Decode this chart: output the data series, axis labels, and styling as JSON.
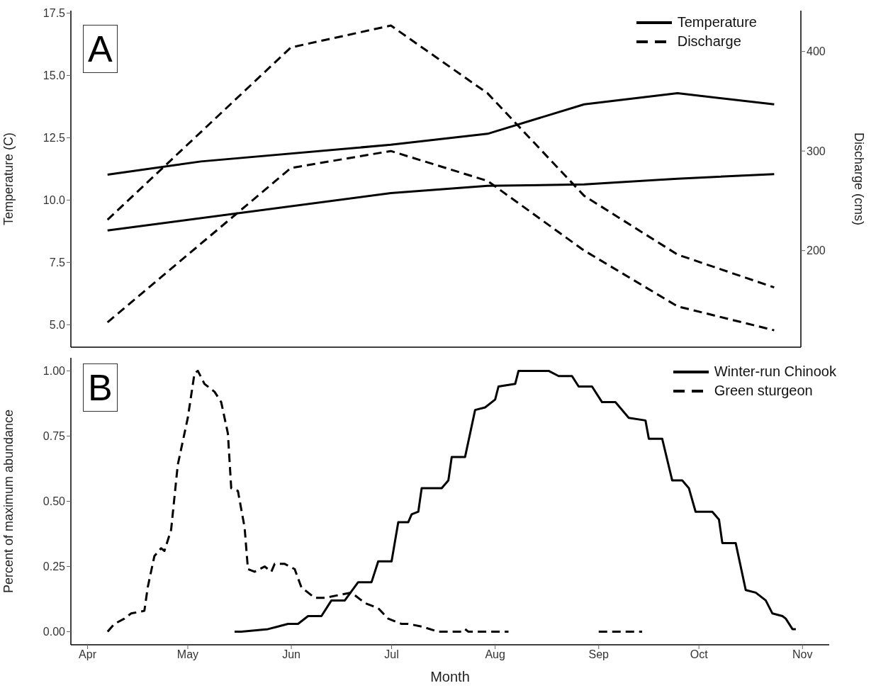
{
  "chart_data": [
    {
      "type": "line",
      "ylabel": "Temperature (C)",
      "y2label": "Discharge (cms)",
      "annotations": [
        "A"
      ],
      "legend": "top right",
      "tick_labels": "y",
      "xlim": [
        "--03-27",
        "--11-01"
      ],
      "xticks": [
        {
          "value": "--04-01",
          "label": "Apr"
        },
        {
          "value": "--05-01",
          "label": "May"
        },
        {
          "value": "--06-01",
          "label": "Jun"
        },
        {
          "value": "--07-01",
          "label": "Jul"
        },
        {
          "value": "--08-01",
          "label": "Aug"
        },
        {
          "value": "--09-01",
          "label": "Sep"
        },
        {
          "value": "--10-01",
          "label": "Oct"
        },
        {
          "value": "--11-01",
          "label": "Nov"
        }
      ],
      "ylim": [
        4.1,
        17.6
      ],
      "yticks": [
        {
          "value": 5,
          "label": "5.0"
        },
        {
          "value": 7.5,
          "label": "7.5"
        },
        {
          "value": 10,
          "label": "10.0"
        },
        {
          "value": 12.5,
          "label": "12.5"
        },
        {
          "value": 15,
          "label": "15.0"
        },
        {
          "value": 17.5,
          "label": "17.5"
        }
      ],
      "y2lim": [
        103,
        441
      ],
      "y2ticks": [
        200,
        300,
        400
      ],
      "series": [
        {
          "name": "Temperature",
          "color": "#000000",
          "line_style": "solid",
          "x": [
            "--04-07",
            "--05-05",
            "--07-01",
            "--07-30",
            "--08-28",
            "--09-25",
            "--10-24"
          ],
          "values": [
            11.02,
            11.55,
            12.22,
            12.66,
            13.84,
            14.29,
            13.84
          ]
        },
        {
          "color": "#000000",
          "line_style": "solid",
          "x": [
            "--04-07",
            "--07-01",
            "--07-30",
            "--08-28",
            "--09-25",
            "--10-24"
          ],
          "values": [
            8.78,
            10.28,
            10.57,
            10.63,
            10.86,
            11.04
          ]
        },
        {
          "name": "Discharge",
          "color": "#000000",
          "line_style": "dashed",
          "axis": "y2",
          "x": [
            "--04-07",
            "--06-01",
            "--07-01",
            "--07-30",
            "--08-28",
            "--09-25",
            "--10-24"
          ],
          "values": [
            231,
            404,
            426,
            358,
            255,
            196,
            163
          ]
        },
        {
          "color": "#000000",
          "line_style": "dashed",
          "axis": "y2",
          "x": [
            "--04-07",
            "--06-01",
            "--07-01",
            "--07-30",
            "--08-28",
            "--09-25",
            "--10-24"
          ],
          "values": [
            128,
            283,
            300,
            270,
            200,
            144,
            120
          ]
        }
      ]
    },
    {
      "type": "line",
      "xlabel": "Month",
      "ylabel": "Percent of maximum abundance",
      "annotations": [
        "B"
      ],
      "legend": "top right",
      "xlim": [
        "--03-27",
        "--11-09"
      ],
      "xticks": [
        {
          "value": "--04-01",
          "label": "Apr"
        },
        {
          "value": "--05-01",
          "label": "May"
        },
        {
          "value": "--06-01",
          "label": "Jun"
        },
        {
          "value": "--07-01",
          "label": "Jul"
        },
        {
          "value": "--08-01",
          "label": "Aug"
        },
        {
          "value": "--09-01",
          "label": "Sep"
        },
        {
          "value": "--10-01",
          "label": "Oct"
        },
        {
          "value": "--11-01",
          "label": "Nov"
        }
      ],
      "ylim": [
        -0.05,
        1.05
      ],
      "yticks": [
        {
          "value": 0,
          "label": "0.00"
        },
        {
          "value": 0.25,
          "label": "0.25"
        },
        {
          "value": 0.5,
          "label": "0.50"
        },
        {
          "value": 0.75,
          "label": "0.75"
        },
        {
          "value": 1,
          "label": "1.00"
        }
      ],
      "series": [
        {
          "name": "Winter-run Chinook",
          "color": "#000000",
          "line_style": "solid",
          "x": [
            "--05-15",
            "--05-17",
            "--05-25",
            "--05-28",
            "--05-31",
            "--06-03",
            "--06-06",
            "--06-10",
            "--06-13",
            "--06-17",
            "--06-21",
            "--06-25",
            "--06-27",
            "--07-01",
            "--07-03",
            "--07-06",
            "--07-07",
            "--07-09",
            "--07-10",
            "--07-16",
            "--07-18",
            "--07-19",
            "--07-23",
            "--07-26",
            "--07-29",
            "--08-01",
            "--08-02",
            "--08-07",
            "--08-08",
            "--08-17",
            "--08-20",
            "--08-24",
            "--08-26",
            "--08-30",
            "--09-02",
            "--09-06",
            "--09-10",
            "--09-15",
            "--09-16",
            "--09-20",
            "--09-23",
            "--09-26",
            "--09-28",
            "--09-30",
            "--10-05",
            "--10-07",
            "--10-08",
            "--10-12",
            "--10-15",
            "--10-18",
            "--10-21",
            "--10-23",
            "--10-26",
            "--10-27",
            "--10-29",
            "--10-30"
          ],
          "values": [
            0.0,
            0.0,
            0.01,
            0.02,
            0.03,
            0.03,
            0.06,
            0.06,
            0.12,
            0.12,
            0.19,
            0.19,
            0.27,
            0.27,
            0.42,
            0.42,
            0.45,
            0.46,
            0.55,
            0.55,
            0.58,
            0.67,
            0.67,
            0.85,
            0.86,
            0.89,
            0.94,
            0.95,
            1.0,
            1.0,
            0.98,
            0.98,
            0.94,
            0.94,
            0.88,
            0.88,
            0.82,
            0.81,
            0.74,
            0.74,
            0.58,
            0.58,
            0.55,
            0.46,
            0.46,
            0.43,
            0.34,
            0.34,
            0.16,
            0.15,
            0.12,
            0.07,
            0.06,
            0.05,
            0.01,
            0.01
          ]
        },
        {
          "name": "Green sturgeon",
          "color": "#000000",
          "line_style": "dashed",
          "x": [
            "--04-07",
            "--04-09",
            "--04-12",
            "--04-14",
            "--04-18",
            "--04-19",
            "--04-21",
            "--04-23",
            "--04-24",
            "--04-26",
            "--04-28",
            "--05-01",
            "--05-03",
            "--05-04",
            "--05-06",
            "--05-09",
            "--05-11",
            "--05-13",
            "--05-14",
            "--05-16",
            "--05-18",
            "--05-19",
            "--05-21",
            "--05-24",
            "--05-26",
            "--05-27",
            "--05-30",
            "--06-02",
            "--06-04",
            "--06-08",
            "--06-11",
            "--06-19",
            "--06-23",
            "--06-27",
            "--06-30",
            "--07-04",
            "--07-06",
            "--07-10",
            "--07-15",
            "--07-22",
            "--07-23",
            "--07-24",
            "--08-05",
            "--08-15",
            "--09-01",
            "--09-14"
          ],
          "values": [
            0.0,
            0.03,
            0.05,
            0.07,
            0.08,
            0.17,
            0.29,
            0.32,
            0.31,
            0.39,
            0.64,
            0.82,
            0.99,
            1.0,
            0.95,
            0.92,
            0.88,
            0.76,
            0.55,
            0.54,
            0.4,
            0.24,
            0.23,
            0.25,
            0.23,
            0.26,
            0.26,
            0.24,
            0.17,
            0.13,
            0.13,
            0.15,
            0.11,
            0.09,
            0.05,
            0.03,
            0.03,
            0.02,
            0.0,
            0.0,
            0.01,
            0.0,
            0.0,
            null,
            0.0,
            0.0
          ]
        }
      ]
    }
  ]
}
